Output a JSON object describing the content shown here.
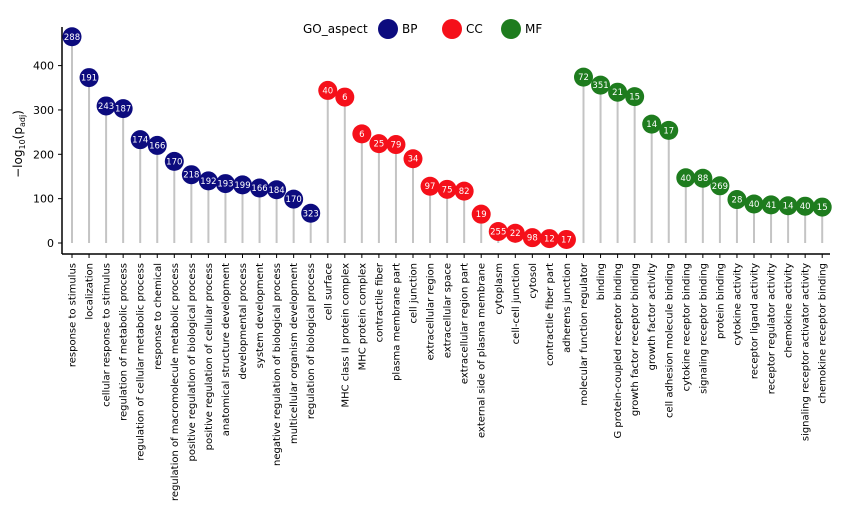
{
  "chart_data": {
    "type": "lollipop",
    "ylabel_main": "−log",
    "ylabel_sub": "10",
    "ylabel_paren_open": "(p",
    "ylabel_paren_sub": "adj",
    "ylabel_paren_close": ")",
    "ylim": [
      -25,
      470
    ],
    "yticks": [
      0,
      100,
      200,
      300,
      400
    ],
    "legend": {
      "title": "GO_aspect",
      "placement": "top-center",
      "entries": [
        {
          "key": "BP",
          "label": "BP",
          "color": "#0c0b7e"
        },
        {
          "key": "CC",
          "label": "CC",
          "color": "#f5101a"
        },
        {
          "key": "MF",
          "label": "MF",
          "color": "#1e7c1e"
        }
      ]
    },
    "points": [
      {
        "term": "response to stimulus",
        "aspect": "BP",
        "value": 465,
        "count": "288"
      },
      {
        "term": "localization",
        "aspect": "BP",
        "value": 373,
        "count": "191"
      },
      {
        "term": "cellular response to stimulus",
        "aspect": "BP",
        "value": 309,
        "count": "243"
      },
      {
        "term": "regulation of metabolic process",
        "aspect": "BP",
        "value": 303,
        "count": "187"
      },
      {
        "term": "regulation of cellular metabolic process",
        "aspect": "BP",
        "value": 233,
        "count": "174"
      },
      {
        "term": "response to chemical",
        "aspect": "BP",
        "value": 220,
        "count": "166"
      },
      {
        "term": "regulation of macromolecule metabolic process",
        "aspect": "BP",
        "value": 184,
        "count": "170"
      },
      {
        "term": "positive regulation of biological process",
        "aspect": "BP",
        "value": 154,
        "count": "218"
      },
      {
        "term": "positive regulation of cellular process",
        "aspect": "BP",
        "value": 140,
        "count": "192"
      },
      {
        "term": "anatomical structure development",
        "aspect": "BP",
        "value": 134,
        "count": "193"
      },
      {
        "term": "developmental process",
        "aspect": "BP",
        "value": 131,
        "count": "199"
      },
      {
        "term": "system development",
        "aspect": "BP",
        "value": 124,
        "count": "166"
      },
      {
        "term": "negative regulation of biological process",
        "aspect": "BP",
        "value": 120,
        "count": "184"
      },
      {
        "term": "multicellular organism development",
        "aspect": "BP",
        "value": 99,
        "count": "170"
      },
      {
        "term": "regulation of biological process",
        "aspect": "BP",
        "value": 67,
        "count": "323"
      },
      {
        "term": "cell surface",
        "aspect": "CC",
        "value": 344,
        "count": "40"
      },
      {
        "term": "MHC class II protein complex",
        "aspect": "CC",
        "value": 329,
        "count": "6"
      },
      {
        "term": "MHC protein complex",
        "aspect": "CC",
        "value": 246,
        "count": "6"
      },
      {
        "term": "contractile fiber",
        "aspect": "CC",
        "value": 224,
        "count": "25"
      },
      {
        "term": "plasma membrane part",
        "aspect": "CC",
        "value": 222,
        "count": "79"
      },
      {
        "term": "cell junction",
        "aspect": "CC",
        "value": 190,
        "count": "34"
      },
      {
        "term": "extracellular region",
        "aspect": "CC",
        "value": 128,
        "count": "97"
      },
      {
        "term": "extracellular space",
        "aspect": "CC",
        "value": 121,
        "count": "75"
      },
      {
        "term": "extracellular region part",
        "aspect": "CC",
        "value": 117,
        "count": "82"
      },
      {
        "term": "external side of plasma membrane",
        "aspect": "CC",
        "value": 65,
        "count": "19"
      },
      {
        "term": "cytoplasm",
        "aspect": "CC",
        "value": 26,
        "count": "255"
      },
      {
        "term": "cell-cell junction",
        "aspect": "CC",
        "value": 22,
        "count": "22"
      },
      {
        "term": "cytosol",
        "aspect": "CC",
        "value": 12,
        "count": "98"
      },
      {
        "term": "contractile fiber part",
        "aspect": "CC",
        "value": 10,
        "count": "12"
      },
      {
        "term": "adherens junction",
        "aspect": "CC",
        "value": 8,
        "count": "17"
      },
      {
        "term": "molecular function regulator",
        "aspect": "MF",
        "value": 374,
        "count": "72"
      },
      {
        "term": "binding",
        "aspect": "MF",
        "value": 356,
        "count": "351"
      },
      {
        "term": "G protein-coupled receptor binding",
        "aspect": "MF",
        "value": 340,
        "count": "21"
      },
      {
        "term": "growth factor receptor binding",
        "aspect": "MF",
        "value": 330,
        "count": "15"
      },
      {
        "term": "growth factor activity",
        "aspect": "MF",
        "value": 268,
        "count": "14"
      },
      {
        "term": "cell adhesion molecule binding",
        "aspect": "MF",
        "value": 254,
        "count": "17"
      },
      {
        "term": "cytokine receptor binding",
        "aspect": "MF",
        "value": 147,
        "count": "40"
      },
      {
        "term": "signaling receptor binding",
        "aspect": "MF",
        "value": 146,
        "count": "88"
      },
      {
        "term": "protein binding",
        "aspect": "MF",
        "value": 129,
        "count": "269"
      },
      {
        "term": "cytokine activity",
        "aspect": "MF",
        "value": 98,
        "count": "28"
      },
      {
        "term": "receptor ligand activity",
        "aspect": "MF",
        "value": 88,
        "count": "40"
      },
      {
        "term": "receptor regulator activity",
        "aspect": "MF",
        "value": 86,
        "count": "41"
      },
      {
        "term": "chemokine activity",
        "aspect": "MF",
        "value": 84,
        "count": "14"
      },
      {
        "term": "signaling receptor activator activity",
        "aspect": "MF",
        "value": 83,
        "count": "40"
      },
      {
        "term": "chemokine receptor binding",
        "aspect": "MF",
        "value": 81,
        "count": "15"
      }
    ]
  }
}
